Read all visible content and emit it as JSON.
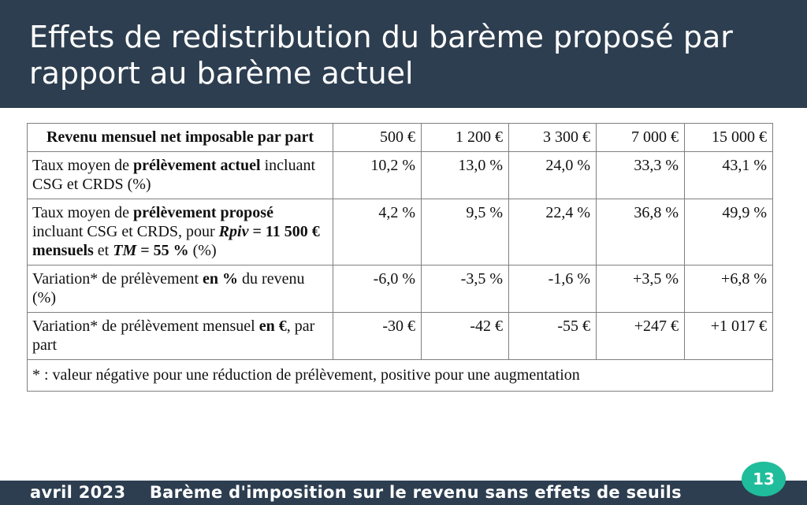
{
  "slide": {
    "title": "Effets de redistribution du barème proposé  par rapport au barème actuel",
    "footer": "avril 2023    Barème d'imposition sur le revenu sans effets de seuils",
    "page_number": "13"
  },
  "table": {
    "header": {
      "label": "Revenu mensuel net imposable par part",
      "columns": [
        "500 €",
        "1 200 €",
        "3 300 €",
        "7 000 €",
        "15 000 €"
      ]
    },
    "rows": [
      {
        "label_a": "Taux moyen de ",
        "label_b": "prélèvement actuel",
        "label_c": " incluant CSG et CRDS (%)",
        "values": [
          "10,2 %",
          "13,0 %",
          "24,0 %",
          "33,3 %",
          "43,1 %"
        ]
      },
      {
        "label_a": "Taux moyen de ",
        "label_b": "prélèvement proposé",
        "label_c": " incluant CSG et CRDS, pour ",
        "label_d": "Rpiv",
        "label_e": " = 11 500 € mensuels",
        "label_f": " et ",
        "label_g": "TM",
        "label_h": " = 55 %",
        "label_i": " (%)",
        "values": [
          "4,2 %",
          "9,5 %",
          "22,4 %",
          "36,8 %",
          "49,9 %"
        ]
      },
      {
        "label_a": "Variation* de prélèvement ",
        "label_b": "en %",
        "label_c": " du revenu (%)",
        "values": [
          "-6,0 %",
          "-3,5 %",
          "-1,6 %",
          "+3,5 %",
          "+6,8 %"
        ]
      },
      {
        "label_a": "Variation* de prélèvement mensuel ",
        "label_b": "en €",
        "label_c": ", par part",
        "values": [
          "-30 €",
          "-42 €",
          "-55 €",
          "+247 €",
          "+1 017 €"
        ]
      }
    ],
    "note": "* : valeur négative pour une réduction de prélèvement, positive pour une augmentation"
  }
}
